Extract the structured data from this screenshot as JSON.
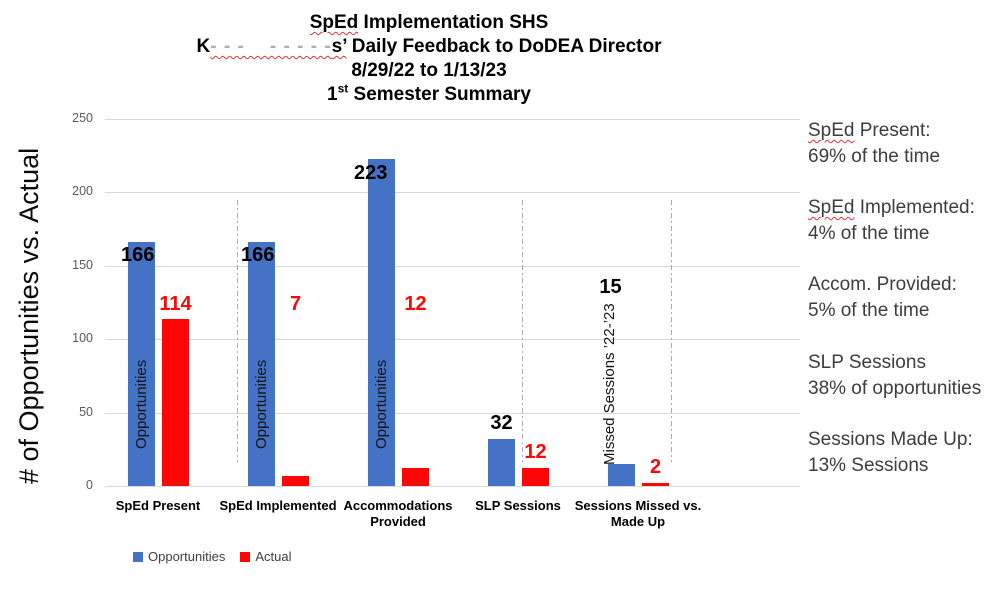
{
  "title": {
    "line1_word": "SpEd",
    "line1_rest": " Implementation SHS",
    "line2_prefix": "K",
    "line2_redacted": "- - -    - - - - -",
    "line2_s": "s’",
    "line2_rest": " Daily Feedback to DoDEA Director",
    "line3": "8/29/22 to 1/13/23",
    "line4_num": "1",
    "line4_sup": "st",
    "line4_rest": " Semester Summary"
  },
  "y_axis": {
    "title": "# of Opportunities vs. Actual",
    "ticks": [
      "250",
      "200",
      "150",
      "100",
      "50",
      "0"
    ]
  },
  "legend": [
    {
      "label": "Opportunities",
      "color": "#4472c4"
    },
    {
      "label": "Actual",
      "color": "#fe0606"
    }
  ],
  "annotations": [
    {
      "header_wavy": "SpEd",
      "header_rest": " Present:",
      "value": "69% of the time"
    },
    {
      "header_wavy": "SpEd",
      "header_rest": " Implemented:",
      "value": "4% of the time"
    },
    {
      "header_wavy": "",
      "header_rest": "Accom. Provided:",
      "value": "5% of the time"
    },
    {
      "header_wavy": "",
      "header_rest": "SLP Sessions",
      "value": "38% of opportunities"
    },
    {
      "header_wavy": "",
      "header_rest": "Sessions Made Up:",
      "value": "13% Sessions"
    }
  ],
  "chart_data": {
    "type": "bar",
    "categories": [
      "SpEd Present",
      "SpEd Implemented",
      "Accommodations\nProvided",
      "SLP Sessions",
      "Sessions Missed vs.\nMade Up"
    ],
    "series": [
      {
        "name": "Opportunities",
        "color": "#4472c4",
        "values": [
          166,
          166,
          223,
          32,
          15
        ]
      },
      {
        "name": "Actual",
        "color": "#fe0606",
        "values": [
          114,
          7,
          12,
          12,
          2
        ]
      }
    ],
    "bar_inner_labels": [
      "Opportunities",
      "Opportunities",
      "Opportunities",
      "",
      "Missed Sessions ’22-’23"
    ],
    "ylim": [
      0,
      250
    ],
    "gridlines": true,
    "legend_position": "bottom-left"
  }
}
